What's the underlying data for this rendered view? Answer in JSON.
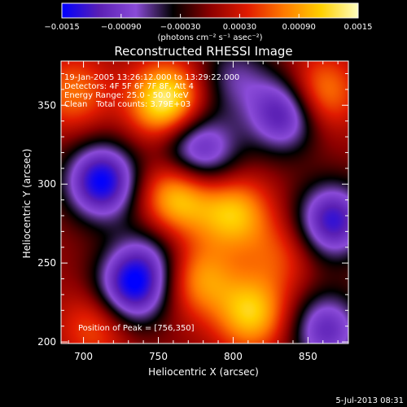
{
  "chart_data": {
    "type": "heatmap",
    "title": "Reconstructed RHESSI Image",
    "xlabel": "Heliocentric X (arcsec)",
    "ylabel": "Heliocentric Y (arcsec)",
    "xlim": [
      685,
      877
    ],
    "ylim": [
      199,
      378
    ],
    "x_ticks": [
      700,
      750,
      800,
      850
    ],
    "y_ticks": [
      200,
      250,
      300,
      350
    ],
    "colorbar": {
      "range": [
        -0.0015,
        0.0015
      ],
      "tick_values": [
        -0.0015,
        -0.0009,
        -0.0003,
        0.0003,
        0.0009,
        0.0015
      ],
      "tick_labels": [
        "−0.0015",
        "−0.00090",
        "−0.00030",
        "0.00030",
        "0.00090",
        "0.0015"
      ],
      "units_label": "(photons cm⁻² s⁻¹ asec⁻²)"
    },
    "color_scale": [
      "#0000ff",
      "#5a1fb4",
      "#8a4bd8",
      "#000000",
      "#8b0000",
      "#e01a00",
      "#ff7a00",
      "#ffd000",
      "#ffffc0"
    ],
    "sources": [
      {
        "x": 755,
        "y": 352,
        "amp": 0.0015
      },
      {
        "x": 762,
        "y": 292,
        "amp": 0.00115
      },
      {
        "x": 800,
        "y": 282,
        "amp": 0.00105
      },
      {
        "x": 812,
        "y": 218,
        "amp": 0.0011
      },
      {
        "x": 778,
        "y": 240,
        "amp": 0.00085
      },
      {
        "x": 858,
        "y": 358,
        "amp": 0.0009
      },
      {
        "x": 693,
        "y": 358,
        "amp": 0.0007
      },
      {
        "x": 708,
        "y": 210,
        "amp": 0.0006
      },
      {
        "x": 830,
        "y": 255,
        "amp": 0.0005
      },
      {
        "x": 712,
        "y": 302,
        "amp": -0.0015
      },
      {
        "x": 732,
        "y": 235,
        "amp": -0.0014
      },
      {
        "x": 834,
        "y": 345,
        "amp": -0.00125
      },
      {
        "x": 866,
        "y": 277,
        "amp": -0.0013
      },
      {
        "x": 862,
        "y": 208,
        "amp": -0.00105
      },
      {
        "x": 770,
        "y": 325,
        "amp": -0.0008
      },
      {
        "x": 800,
        "y": 368,
        "amp": -0.0006
      },
      {
        "x": 785,
        "y": 318,
        "amp": -0.00055
      },
      {
        "x": 745,
        "y": 255,
        "amp": -0.0005
      }
    ]
  },
  "overlay": {
    "time_range": "19-Jan-2005 13:26:12.000 to 13:29:22.000",
    "detectors": "Detectors: 4F 5F 6F 7F 8F, Att 4",
    "energy_range": "Energy Range: 25.0 - 50.0 keV",
    "clean_label": "Clean",
    "total_counts": "Total counts: 3.79E+03",
    "peak_position": "Position of Peak = [756,350]"
  },
  "footer": {
    "date": "5-Jul-2013 08:31"
  }
}
